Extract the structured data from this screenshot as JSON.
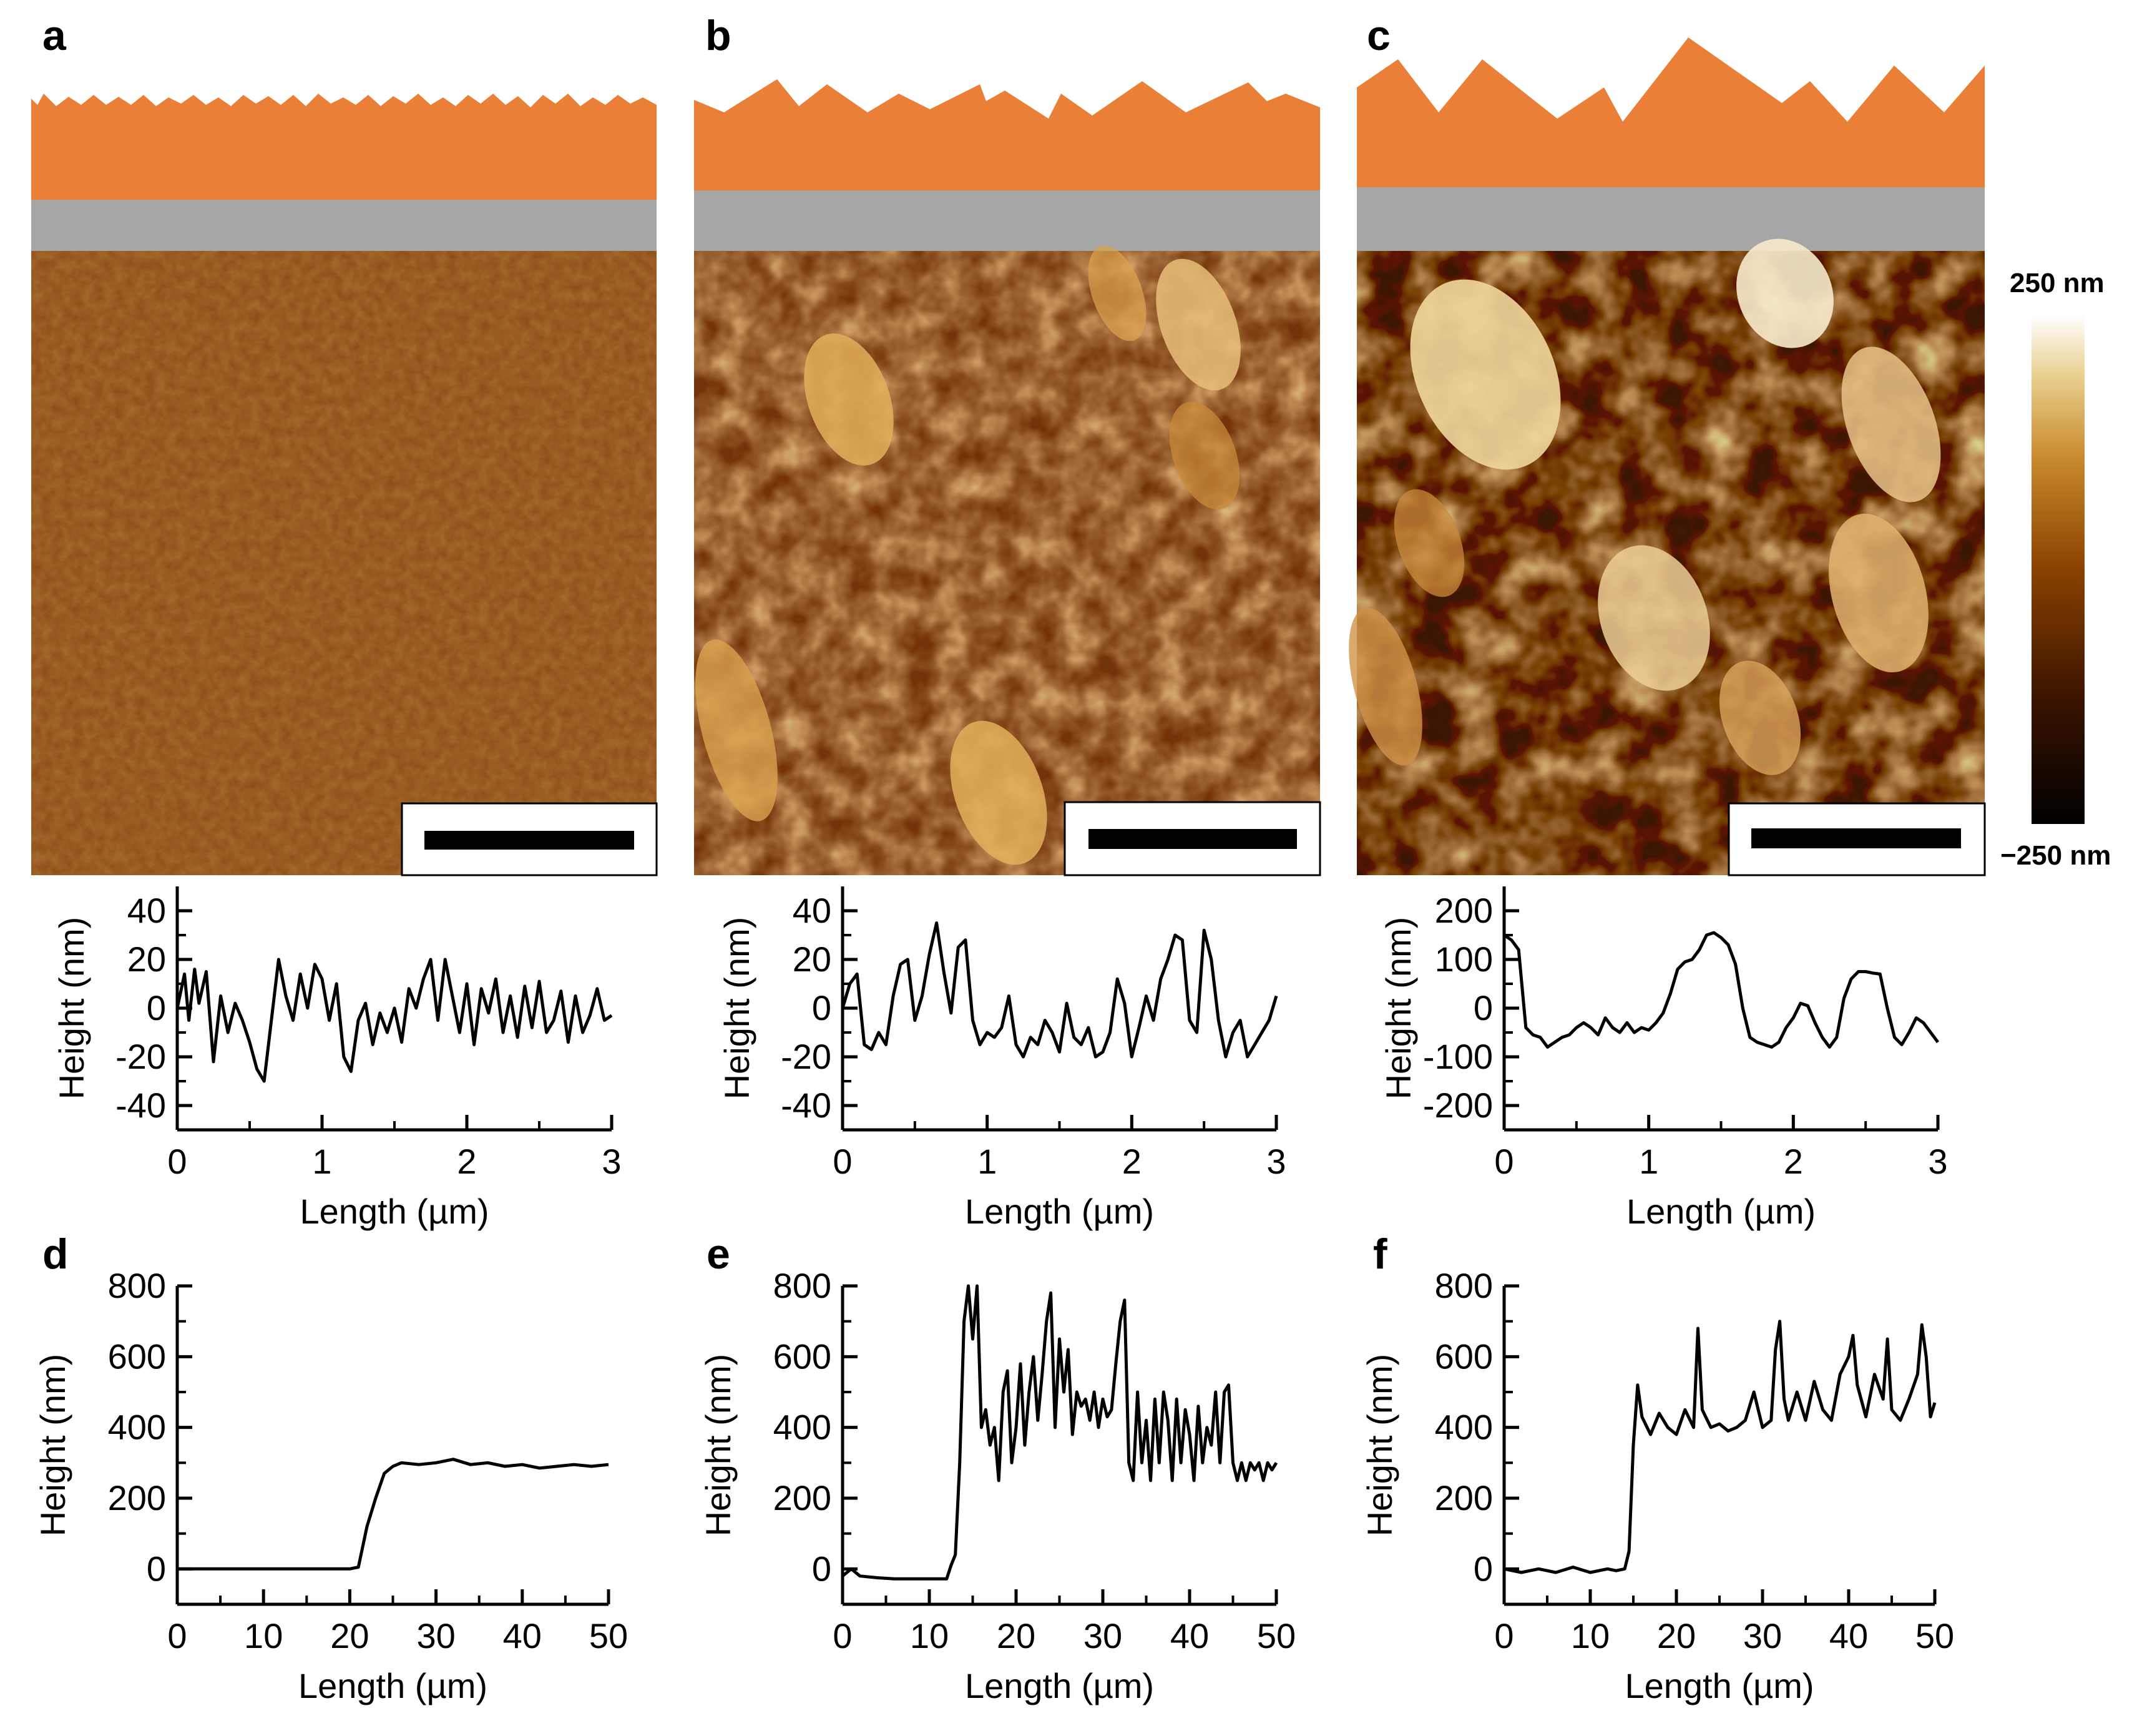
{
  "panel_letters": [
    "a",
    "b",
    "c",
    "d",
    "e",
    "f"
  ],
  "colorbar": {
    "max_label": "250 nm",
    "min_label": "−250 nm",
    "stops": [
      "#000000",
      "#3b1400",
      "#8a4200",
      "#c98a2c",
      "#e8d08f",
      "#ffffff"
    ]
  },
  "colors": {
    "layer_top": "#ea7f37",
    "layer_substrate": "#a6a6a6",
    "afm_base": "#8a4a14"
  },
  "icons": {
    "scale_bar": "scale-bar-icon",
    "surface_layer": "surface-layer-icon"
  },
  "chart_data": [
    {
      "type": "line",
      "panel": "a",
      "xlabel": "Length (µm)",
      "ylabel": "Height (nm)",
      "xlim": [
        0,
        3
      ],
      "ylim": [
        -50,
        50
      ],
      "xticks": [
        "0",
        "1",
        "2",
        "3"
      ],
      "yticks": [
        "40",
        "20",
        "0",
        "-20",
        "-40"
      ],
      "x": [
        0,
        0.05,
        0.08,
        0.12,
        0.15,
        0.2,
        0.25,
        0.3,
        0.35,
        0.4,
        0.45,
        0.5,
        0.55,
        0.6,
        0.65,
        0.7,
        0.75,
        0.8,
        0.85,
        0.9,
        0.95,
        1.0,
        1.05,
        1.1,
        1.15,
        1.2,
        1.25,
        1.3,
        1.35,
        1.4,
        1.45,
        1.5,
        1.55,
        1.6,
        1.65,
        1.7,
        1.75,
        1.8,
        1.85,
        1.9,
        1.95,
        2.0,
        2.05,
        2.1,
        2.15,
        2.2,
        2.25,
        2.3,
        2.35,
        2.4,
        2.45,
        2.5,
        2.55,
        2.6,
        2.65,
        2.7,
        2.75,
        2.8,
        2.85,
        2.9,
        2.95,
        3.0
      ],
      "y": [
        0,
        14,
        -5,
        16,
        2,
        15,
        -22,
        5,
        -10,
        2,
        -5,
        -14,
        -25,
        -30,
        -5,
        20,
        5,
        -5,
        14,
        0,
        18,
        12,
        -5,
        10,
        -20,
        -26,
        -5,
        2,
        -15,
        -2,
        -10,
        0,
        -14,
        8,
        0,
        12,
        20,
        -5,
        20,
        5,
        -10,
        10,
        -15,
        8,
        -2,
        12,
        -10,
        5,
        -12,
        9,
        -8,
        11,
        -10,
        -5,
        7,
        -14,
        5,
        -10,
        -3,
        8,
        -5,
        -3
      ],
      "ypixel_unused": null
    },
    {
      "type": "line",
      "panel": "b",
      "xlabel": "Length (µm)",
      "ylabel": "Height (nm)",
      "xlim": [
        0,
        3
      ],
      "ylim": [
        -50,
        50
      ],
      "xticks": [
        "0",
        "1",
        "2",
        "3"
      ],
      "yticks": [
        "40",
        "20",
        "0",
        "-20",
        "-40"
      ],
      "x": [
        0,
        0.05,
        0.1,
        0.15,
        0.2,
        0.25,
        0.3,
        0.35,
        0.4,
        0.45,
        0.5,
        0.55,
        0.6,
        0.65,
        0.7,
        0.75,
        0.8,
        0.85,
        0.9,
        0.95,
        1.0,
        1.05,
        1.1,
        1.15,
        1.2,
        1.25,
        1.3,
        1.35,
        1.4,
        1.45,
        1.5,
        1.55,
        1.6,
        1.65,
        1.7,
        1.75,
        1.8,
        1.85,
        1.9,
        1.95,
        2.0,
        2.05,
        2.1,
        2.15,
        2.2,
        2.25,
        2.3,
        2.35,
        2.4,
        2.45,
        2.5,
        2.55,
        2.6,
        2.65,
        2.7,
        2.75,
        2.8,
        2.85,
        2.9,
        2.95,
        3.0
      ],
      "y": [
        0,
        10,
        14,
        -15,
        -17,
        -10,
        -15,
        5,
        18,
        20,
        -5,
        5,
        22,
        35,
        15,
        -2,
        25,
        28,
        -5,
        -15,
        -10,
        -12,
        -8,
        5,
        -15,
        -20,
        -12,
        -15,
        -5,
        -10,
        -18,
        2,
        -12,
        -15,
        -8,
        -20,
        -18,
        -10,
        12,
        2,
        -20,
        -8,
        5,
        -5,
        12,
        20,
        30,
        28,
        -5,
        -10,
        32,
        20,
        -5,
        -20,
        -10,
        -5,
        -20,
        -15,
        -10,
        -5,
        5
      ]
    },
    {
      "type": "line",
      "panel": "c",
      "xlabel": "Length (µm)",
      "ylabel": "Height (nm)",
      "xlim": [
        0,
        3
      ],
      "ylim": [
        -250,
        250
      ],
      "xticks": [
        "0",
        "1",
        "2",
        "3"
      ],
      "yticks": [
        "200",
        "100",
        "0",
        "-100",
        "-200"
      ],
      "x": [
        0,
        0.05,
        0.1,
        0.15,
        0.2,
        0.25,
        0.3,
        0.35,
        0.4,
        0.45,
        0.5,
        0.55,
        0.6,
        0.65,
        0.7,
        0.75,
        0.8,
        0.85,
        0.9,
        0.95,
        1.0,
        1.05,
        1.1,
        1.15,
        1.2,
        1.25,
        1.3,
        1.35,
        1.4,
        1.45,
        1.5,
        1.55,
        1.6,
        1.65,
        1.7,
        1.75,
        1.8,
        1.85,
        1.9,
        1.95,
        2.0,
        2.05,
        2.1,
        2.15,
        2.2,
        2.25,
        2.3,
        2.35,
        2.4,
        2.45,
        2.5,
        2.55,
        2.6,
        2.65,
        2.7,
        2.75,
        2.8,
        2.85,
        2.9,
        2.95,
        3.0
      ],
      "y": [
        150,
        140,
        120,
        -40,
        -55,
        -60,
        -80,
        -70,
        -60,
        -55,
        -40,
        -30,
        -40,
        -55,
        -20,
        -40,
        -50,
        -30,
        -50,
        -40,
        -45,
        -30,
        -10,
        30,
        80,
        95,
        100,
        120,
        150,
        155,
        145,
        130,
        90,
        0,
        -60,
        -70,
        -75,
        -80,
        -70,
        -40,
        -20,
        10,
        5,
        -30,
        -60,
        -80,
        -60,
        20,
        60,
        75,
        75,
        72,
        70,
        0,
        -60,
        -75,
        -50,
        -20,
        -30,
        -50,
        -70
      ]
    },
    {
      "type": "line",
      "panel": "d",
      "xlabel": "Length (µm)",
      "ylabel": "Height (nm)",
      "xlim": [
        0,
        50
      ],
      "ylim": [
        -100,
        800
      ],
      "xticks": [
        "0",
        "10",
        "20",
        "30",
        "40",
        "50"
      ],
      "yticks": [
        "800",
        "600",
        "400",
        "200",
        "0"
      ],
      "x": [
        0,
        5,
        10,
        15,
        20,
        21,
        22,
        23,
        24,
        25,
        26,
        28,
        30,
        32,
        34,
        36,
        38,
        40,
        42,
        44,
        46,
        48,
        50
      ],
      "y": [
        0,
        0,
        0,
        0,
        0,
        5,
        120,
        200,
        270,
        290,
        300,
        295,
        300,
        310,
        295,
        300,
        290,
        295,
        285,
        290,
        295,
        290,
        295
      ]
    },
    {
      "type": "line",
      "panel": "e",
      "xlabel": "Length (µm)",
      "ylabel": "Height (nm)",
      "xlim": [
        0,
        50
      ],
      "ylim": [
        -100,
        800
      ],
      "xticks": [
        "0",
        "10",
        "20",
        "30",
        "40",
        "50"
      ],
      "yticks": [
        "800",
        "600",
        "400",
        "200",
        "0"
      ],
      "x": [
        0,
        1,
        2,
        4,
        6,
        8,
        10,
        12,
        12.5,
        13,
        13.5,
        14,
        14.5,
        15,
        15.5,
        16,
        16.5,
        17,
        17.5,
        18,
        18.5,
        19,
        19.5,
        20,
        20.5,
        21,
        21.5,
        22,
        22.5,
        23,
        23.5,
        24,
        24.5,
        25,
        25.5,
        26,
        26.5,
        27,
        27.5,
        28,
        28.5,
        29,
        29.5,
        30,
        30.5,
        31,
        31.5,
        32,
        32.5,
        33,
        33.5,
        34,
        34.5,
        35,
        35.5,
        36,
        36.5,
        37,
        37.5,
        38,
        38.5,
        39,
        39.5,
        40,
        40.5,
        41,
        41.5,
        42,
        42.5,
        43,
        43.5,
        44,
        44.5,
        45,
        45.5,
        46,
        46.5,
        47,
        47.5,
        48,
        48.5,
        49,
        49.5,
        50
      ],
      "y": [
        -20,
        0,
        -20,
        -25,
        -28,
        -28,
        -28,
        -28,
        10,
        40,
        300,
        700,
        800,
        650,
        800,
        400,
        450,
        350,
        400,
        250,
        500,
        560,
        300,
        400,
        580,
        350,
        500,
        600,
        420,
        550,
        700,
        780,
        400,
        650,
        500,
        620,
        380,
        500,
        460,
        480,
        420,
        500,
        400,
        480,
        430,
        450,
        580,
        700,
        760,
        300,
        250,
        500,
        300,
        420,
        250,
        480,
        300,
        500,
        420,
        250,
        480,
        300,
        450,
        380,
        250,
        460,
        300,
        400,
        350,
        500,
        300,
        500,
        520,
        300,
        250,
        300,
        250,
        300,
        280,
        300,
        250,
        300,
        280,
        300
      ]
    },
    {
      "type": "line",
      "panel": "f",
      "xlabel": "Length (µm)",
      "ylabel": "Height (nm)",
      "xlim": [
        0,
        50
      ],
      "ylim": [
        -100,
        800
      ],
      "xticks": [
        "0",
        "10",
        "20",
        "30",
        "40",
        "50"
      ],
      "yticks": [
        "800",
        "600",
        "400",
        "200",
        "0"
      ],
      "x": [
        0,
        2,
        4,
        6,
        8,
        10,
        12,
        13,
        14,
        14.5,
        15,
        15.5,
        16,
        17,
        18,
        19,
        20,
        21,
        22,
        22.5,
        23,
        24,
        25,
        26,
        27,
        28,
        29,
        30,
        31,
        31.5,
        32,
        32.5,
        33,
        34,
        35,
        36,
        37,
        38,
        39,
        40,
        40.5,
        41,
        42,
        43,
        44,
        44.5,
        45,
        46,
        47,
        48,
        48.5,
        49,
        49.5,
        50
      ],
      "y": [
        0,
        -10,
        0,
        -10,
        5,
        -10,
        0,
        -5,
        0,
        50,
        350,
        520,
        430,
        380,
        440,
        400,
        380,
        450,
        400,
        680,
        450,
        400,
        410,
        390,
        400,
        420,
        500,
        400,
        420,
        620,
        700,
        480,
        420,
        500,
        420,
        530,
        450,
        420,
        550,
        600,
        660,
        520,
        430,
        550,
        480,
        650,
        450,
        420,
        480,
        550,
        690,
        600,
        430,
        470
      ]
    }
  ]
}
